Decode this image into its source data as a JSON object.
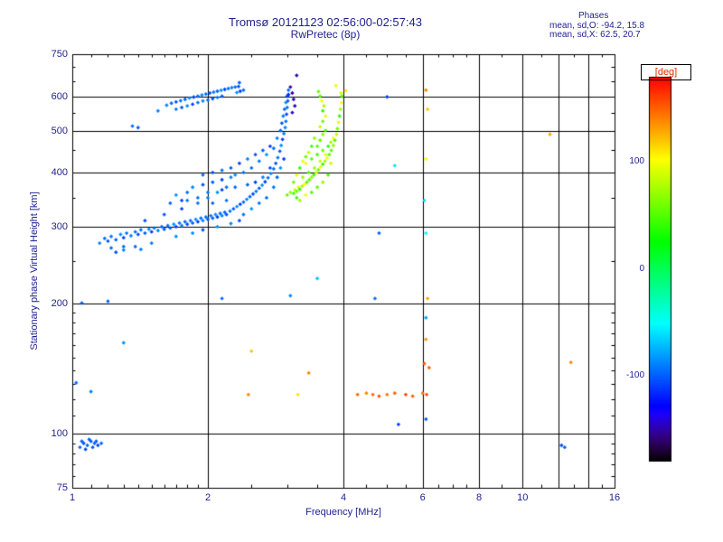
{
  "title": "Tromsø 20121123 02:56:00-02:57:43",
  "subtitle": "RwPretec (8p)",
  "stats": {
    "header": "Phases",
    "line1": "mean, sd,O: -94.2, 15.8",
    "line2": "mean, sd,X:  62.5, 20.7"
  },
  "colors": {
    "text": "#1f1f8f",
    "deg_label": "#d83000",
    "grid": "#000000"
  },
  "chart_data": {
    "type": "scatter",
    "title": "Tromsø 20121123 02:56:00-02:57:43",
    "subtitle": "RwPretec (8p)",
    "xlabel": "Frequency [MHz]",
    "ylabel": "Stationary phase Virtual Height [km]",
    "xscale": "log",
    "yscale": "log",
    "xlim": [
      1,
      16
    ],
    "ylim": [
      75,
      750
    ],
    "xticks": [
      1,
      2,
      4,
      6,
      8,
      10,
      16
    ],
    "yticks": [
      75,
      100,
      200,
      300,
      400,
      500,
      600,
      750
    ],
    "xgrid": [
      2,
      4,
      6,
      8,
      10,
      12,
      14
    ],
    "ygrid": [
      100,
      200,
      300,
      400,
      500,
      600
    ],
    "grid": true,
    "colorbar": {
      "label": "[deg]",
      "ticks": [
        100,
        0,
        -100
      ],
      "range": [
        -180,
        180
      ],
      "position": "right"
    },
    "points": [
      [
        1.04,
        93,
        -100
      ],
      [
        1.06,
        95,
        -105
      ],
      [
        1.08,
        94,
        -98
      ],
      [
        1.1,
        96,
        -102
      ],
      [
        1.12,
        95,
        -96
      ],
      [
        1.14,
        94,
        -108
      ],
      [
        1.07,
        92,
        -110
      ],
      [
        1.09,
        97,
        -100
      ],
      [
        1.11,
        93,
        -104
      ],
      [
        1.05,
        96,
        -99
      ],
      [
        1.13,
        96,
        -101
      ],
      [
        1.16,
        95,
        -97
      ],
      [
        1.15,
        275,
        -88
      ],
      [
        1.18,
        282,
        -96
      ],
      [
        1.2,
        278,
        -104
      ],
      [
        1.22,
        285,
        -92
      ],
      [
        1.25,
        280,
        -100
      ],
      [
        1.28,
        288,
        -84
      ],
      [
        1.3,
        283,
        -110
      ],
      [
        1.32,
        290,
        -94
      ],
      [
        1.35,
        286,
        -88
      ],
      [
        1.38,
        292,
        -96
      ],
      [
        1.4,
        288,
        -104
      ],
      [
        1.42,
        295,
        -92
      ],
      [
        1.45,
        290,
        -100
      ],
      [
        1.48,
        296,
        -84
      ],
      [
        1.5,
        292,
        -110
      ],
      [
        1.52,
        298,
        -94
      ],
      [
        1.55,
        294,
        -88
      ],
      [
        1.58,
        300,
        -96
      ],
      [
        1.6,
        296,
        -104
      ],
      [
        1.63,
        302,
        -92
      ],
      [
        1.65,
        298,
        -100
      ],
      [
        1.68,
        304,
        -84
      ],
      [
        1.7,
        300,
        -110
      ],
      [
        1.73,
        306,
        -94
      ],
      [
        1.75,
        302,
        -88
      ],
      [
        1.78,
        308,
        -96
      ],
      [
        1.8,
        304,
        -104
      ],
      [
        1.83,
        310,
        -92
      ],
      [
        1.85,
        306,
        -100
      ],
      [
        1.88,
        312,
        -84
      ],
      [
        1.9,
        308,
        -110
      ],
      [
        1.93,
        314,
        -94
      ],
      [
        1.95,
        310,
        -88
      ],
      [
        1.98,
        316,
        -96
      ],
      [
        2.0,
        312,
        -104
      ],
      [
        2.03,
        318,
        -92
      ],
      [
        2.05,
        314,
        -100
      ],
      [
        2.08,
        320,
        -84
      ],
      [
        2.1,
        316,
        -110
      ],
      [
        2.13,
        322,
        -94
      ],
      [
        2.15,
        318,
        -88
      ],
      [
        2.18,
        324,
        -96
      ],
      [
        2.2,
        320,
        -104
      ],
      [
        2.24,
        326,
        -92
      ],
      [
        2.28,
        330,
        -100
      ],
      [
        2.32,
        334,
        -84
      ],
      [
        2.36,
        338,
        -110
      ],
      [
        2.4,
        342,
        -94
      ],
      [
        2.44,
        347,
        -88
      ],
      [
        2.48,
        352,
        -96
      ],
      [
        2.52,
        357,
        -104
      ],
      [
        2.56,
        362,
        -92
      ],
      [
        2.6,
        368,
        -100
      ],
      [
        2.64,
        374,
        -84
      ],
      [
        2.68,
        381,
        -110
      ],
      [
        2.72,
        389,
        -94
      ],
      [
        2.76,
        398,
        -88
      ],
      [
        2.8,
        408,
        -96
      ],
      [
        2.83,
        420,
        -104
      ],
      [
        2.86,
        433,
        -92
      ],
      [
        2.89,
        448,
        -100
      ],
      [
        2.91,
        462,
        -84
      ],
      [
        2.93,
        477,
        -110
      ],
      [
        2.95,
        492,
        -94
      ],
      [
        2.97,
        508,
        -88
      ],
      [
        2.98,
        525,
        -96
      ],
      [
        2.99,
        545,
        -104
      ],
      [
        3.0,
        565,
        -92
      ],
      [
        3.01,
        585,
        -100
      ],
      [
        3.02,
        605,
        -120
      ],
      [
        1.3,
        270,
        -96
      ],
      [
        1.45,
        310,
        -104
      ],
      [
        1.5,
        275,
        -92
      ],
      [
        1.6,
        320,
        -100
      ],
      [
        1.7,
        285,
        -84
      ],
      [
        1.75,
        330,
        -110
      ],
      [
        1.8,
        345,
        -94
      ],
      [
        1.85,
        290,
        -88
      ],
      [
        1.9,
        350,
        -96
      ],
      [
        1.95,
        295,
        -104
      ],
      [
        2.0,
        360,
        -92
      ],
      [
        2.05,
        340,
        -100
      ],
      [
        2.1,
        300,
        -84
      ],
      [
        2.15,
        365,
        -110
      ],
      [
        2.2,
        345,
        -94
      ],
      [
        2.25,
        305,
        -88
      ],
      [
        2.3,
        370,
        -96
      ],
      [
        2.35,
        310,
        -104
      ],
      [
        2.4,
        320,
        -92
      ],
      [
        2.45,
        375,
        -100
      ],
      [
        2.5,
        330,
        -84
      ],
      [
        2.55,
        380,
        -110
      ],
      [
        2.6,
        340,
        -94
      ],
      [
        2.65,
        390,
        -88
      ],
      [
        2.7,
        350,
        -96
      ],
      [
        2.75,
        410,
        -104
      ],
      [
        2.8,
        370,
        -92
      ],
      [
        2.85,
        390,
        -100
      ],
      [
        2.9,
        410,
        -84
      ],
      [
        2.95,
        430,
        -110
      ],
      [
        1.22,
        268,
        -94
      ],
      [
        1.3,
        265,
        -88
      ],
      [
        1.38,
        270,
        -96
      ],
      [
        1.25,
        262,
        -104
      ],
      [
        1.42,
        266,
        -92
      ],
      [
        1.65,
        340,
        -100
      ],
      [
        1.7,
        355,
        -84
      ],
      [
        1.75,
        345,
        -110
      ],
      [
        1.8,
        360,
        -94
      ],
      [
        1.85,
        370,
        -88
      ],
      [
        1.9,
        340,
        -96
      ],
      [
        1.95,
        375,
        -104
      ],
      [
        2.0,
        350,
        -92
      ],
      [
        2.05,
        380,
        -100
      ],
      [
        2.1,
        360,
        -84
      ],
      [
        2.15,
        385,
        -110
      ],
      [
        2.2,
        370,
        -94
      ],
      [
        2.25,
        390,
        -88
      ],
      [
        1.95,
        395,
        -96
      ],
      [
        2.05,
        400,
        -104
      ],
      [
        2.15,
        405,
        -92
      ],
      [
        2.25,
        410,
        -100
      ],
      [
        2.3,
        395,
        -84
      ],
      [
        2.35,
        420,
        -110
      ],
      [
        2.4,
        400,
        -94
      ],
      [
        2.45,
        430,
        -88
      ],
      [
        2.5,
        410,
        -96
      ],
      [
        2.55,
        440,
        -104
      ],
      [
        2.6,
        425,
        -92
      ],
      [
        2.65,
        450,
        -100
      ],
      [
        2.7,
        440,
        -84
      ],
      [
        2.75,
        460,
        -110
      ],
      [
        2.8,
        455,
        -94
      ],
      [
        2.85,
        480,
        -88
      ],
      [
        2.9,
        500,
        -96
      ],
      [
        2.92,
        520,
        -104
      ],
      [
        2.94,
        540,
        -92
      ],
      [
        2.96,
        560,
        -100
      ],
      [
        2.98,
        580,
        -84
      ],
      [
        3.0,
        600,
        -110
      ],
      [
        3.02,
        620,
        -94
      ],
      [
        1.62,
        572,
        -88
      ],
      [
        1.66,
        578,
        -96
      ],
      [
        1.7,
        582,
        -104
      ],
      [
        1.74,
        586,
        -92
      ],
      [
        1.78,
        590,
        -100
      ],
      [
        1.82,
        594,
        -84
      ],
      [
        1.86,
        597,
        -110
      ],
      [
        1.9,
        600,
        -94
      ],
      [
        1.94,
        604,
        -88
      ],
      [
        1.98,
        607,
        -96
      ],
      [
        2.02,
        610,
        -104
      ],
      [
        2.06,
        613,
        -92
      ],
      [
        2.1,
        616,
        -100
      ],
      [
        2.14,
        619,
        -84
      ],
      [
        2.18,
        622,
        -110
      ],
      [
        2.22,
        625,
        -94
      ],
      [
        2.26,
        628,
        -88
      ],
      [
        2.3,
        630,
        -96
      ],
      [
        2.34,
        632,
        -104
      ],
      [
        1.7,
        560,
        -92
      ],
      [
        1.75,
        565,
        -100
      ],
      [
        1.8,
        570,
        -84
      ],
      [
        1.85,
        575,
        -110
      ],
      [
        1.9,
        580,
        -94
      ],
      [
        1.95,
        585,
        -88
      ],
      [
        2.0,
        588,
        -96
      ],
      [
        2.05,
        592,
        -104
      ],
      [
        2.1,
        596,
        -92
      ],
      [
        2.15,
        600,
        -100
      ],
      [
        2.32,
        612,
        -84
      ],
      [
        2.36,
        616,
        -110
      ],
      [
        2.4,
        620,
        -94
      ],
      [
        1.55,
        555,
        -88
      ],
      [
        3.05,
        630,
        -150
      ],
      [
        3.08,
        610,
        -155
      ],
      [
        3.1,
        590,
        -148
      ],
      [
        3.12,
        570,
        -152
      ],
      [
        3.08,
        550,
        -145
      ],
      [
        3.15,
        670,
        -150
      ],
      [
        2.35,
        645,
        -100
      ],
      [
        3.0,
        355,
        55
      ],
      [
        3.05,
        360,
        70
      ],
      [
        3.1,
        358,
        45
      ],
      [
        3.12,
        365,
        85
      ],
      [
        3.15,
        362,
        60
      ],
      [
        3.18,
        370,
        95
      ],
      [
        3.2,
        366,
        40
      ],
      [
        3.24,
        372,
        75
      ],
      [
        3.28,
        376,
        100
      ],
      [
        3.32,
        380,
        50
      ],
      [
        3.36,
        385,
        55
      ],
      [
        3.4,
        390,
        70
      ],
      [
        3.44,
        395,
        45
      ],
      [
        3.48,
        400,
        85
      ],
      [
        3.52,
        406,
        60
      ],
      [
        3.56,
        412,
        95
      ],
      [
        3.6,
        418,
        40
      ],
      [
        3.64,
        425,
        75
      ],
      [
        3.68,
        432,
        100
      ],
      [
        3.72,
        440,
        50
      ],
      [
        3.76,
        450,
        55
      ],
      [
        3.8,
        462,
        70
      ],
      [
        3.83,
        475,
        45
      ],
      [
        3.86,
        490,
        85
      ],
      [
        3.88,
        505,
        60
      ],
      [
        3.9,
        522,
        95
      ],
      [
        3.92,
        540,
        40
      ],
      [
        3.94,
        560,
        75
      ],
      [
        3.96,
        580,
        100
      ],
      [
        3.97,
        600,
        50
      ],
      [
        3.1,
        380,
        60
      ],
      [
        3.15,
        395,
        95
      ],
      [
        3.2,
        410,
        40
      ],
      [
        3.25,
        390,
        75
      ],
      [
        3.3,
        420,
        100
      ],
      [
        3.35,
        400,
        50
      ],
      [
        3.4,
        430,
        55
      ],
      [
        3.45,
        410,
        70
      ],
      [
        3.5,
        440,
        45
      ],
      [
        3.55,
        425,
        85
      ],
      [
        3.6,
        450,
        60
      ],
      [
        3.65,
        440,
        95
      ],
      [
        3.7,
        460,
        40
      ],
      [
        3.75,
        470,
        75
      ],
      [
        3.8,
        480,
        100
      ],
      [
        3.5,
        460,
        50
      ],
      [
        3.55,
        475,
        55
      ],
      [
        3.6,
        490,
        70
      ],
      [
        3.65,
        500,
        45
      ],
      [
        3.55,
        510,
        85
      ],
      [
        3.6,
        525,
        60
      ],
      [
        3.65,
        540,
        95
      ],
      [
        3.6,
        555,
        40
      ],
      [
        3.62,
        570,
        75
      ],
      [
        3.58,
        585,
        100
      ],
      [
        3.55,
        600,
        50
      ],
      [
        3.52,
        615,
        55
      ],
      [
        3.45,
        480,
        70
      ],
      [
        3.4,
        460,
        45
      ],
      [
        3.35,
        445,
        85
      ],
      [
        3.3,
        435,
        60
      ],
      [
        3.25,
        425,
        95
      ],
      [
        3.15,
        350,
        40
      ],
      [
        3.2,
        345,
        75
      ],
      [
        3.3,
        355,
        100
      ],
      [
        3.4,
        360,
        50
      ],
      [
        3.5,
        370,
        55
      ],
      [
        3.6,
        380,
        70
      ],
      [
        3.7,
        395,
        45
      ],
      [
        3.75,
        420,
        85
      ],
      [
        6.1,
        620,
        140
      ],
      [
        6.15,
        560,
        120
      ],
      [
        6.1,
        430,
        100
      ],
      [
        6.05,
        345,
        -60
      ],
      [
        6.1,
        290,
        -50
      ],
      [
        6.15,
        205,
        130
      ],
      [
        6.1,
        185,
        -80
      ],
      [
        6.05,
        145,
        150
      ],
      [
        6.2,
        142,
        150
      ],
      [
        6.1,
        108,
        -100
      ],
      [
        6.1,
        165,
        135
      ],
      [
        4.3,
        123,
        150
      ],
      [
        4.5,
        124,
        140
      ],
      [
        4.8,
        122,
        155
      ],
      [
        5.0,
        123,
        145
      ],
      [
        5.2,
        124,
        150
      ],
      [
        5.5,
        123,
        160
      ],
      [
        5.7,
        122,
        150
      ],
      [
        6.0,
        124,
        145
      ],
      [
        6.12,
        123,
        155
      ],
      [
        3.17,
        123,
        110
      ],
      [
        2.46,
        123,
        140
      ],
      [
        4.65,
        123,
        148
      ],
      [
        1.05,
        200,
        -100
      ],
      [
        1.1,
        125,
        -90
      ],
      [
        1.02,
        131,
        -95
      ],
      [
        1.3,
        162,
        -85
      ],
      [
        2.15,
        205,
        -95
      ],
      [
        2.5,
        155,
        120
      ],
      [
        3.05,
        208,
        -90
      ],
      [
        3.5,
        228,
        -70
      ],
      [
        3.35,
        138,
        140
      ],
      [
        4.05,
        618,
        110
      ],
      [
        5.2,
        415,
        -60
      ],
      [
        4.8,
        290,
        -100
      ],
      [
        4.7,
        205,
        -95
      ],
      [
        5.3,
        105,
        -110
      ],
      [
        11.5,
        490,
        130
      ],
      [
        12.8,
        146,
        140
      ],
      [
        12.2,
        94,
        -105
      ],
      [
        12.4,
        93,
        -100
      ],
      [
        3.85,
        635,
        100
      ],
      [
        3.95,
        610,
        90
      ],
      [
        5.0,
        598,
        -110
      ],
      [
        1.36,
        512,
        -95
      ],
      [
        1.4,
        508,
        -100
      ],
      [
        1.2,
        202,
        -98
      ]
    ]
  }
}
